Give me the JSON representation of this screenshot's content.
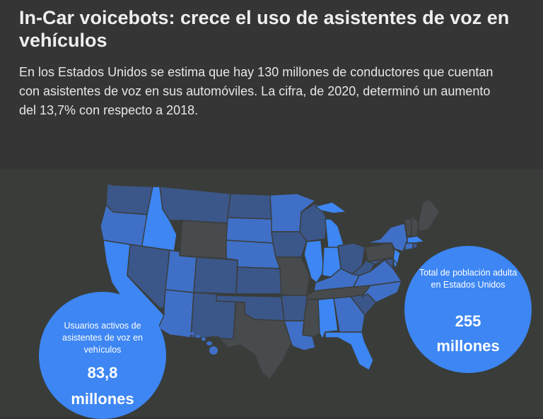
{
  "header": {
    "title": "In-Car voicebots: crece el uso de asistentes de voz en vehículos",
    "description": "En los Estados Unidos se estima que hay 130 millones de conductores que cuentan con asistentes de voz en sus automóviles. La cifra, de 2020, determinó un aumento del 13,7% con respecto a 2018."
  },
  "colors": {
    "header_bg": "#353535",
    "panel_bg": "#393c39",
    "bubble": "#3d86f3",
    "state_bright": "#3d86f3",
    "state_mid": "#3f6fc7",
    "state_dark": "#3b5689",
    "state_gray": "#484b4e"
  },
  "stats": {
    "active_users": {
      "label": "Usuarios activos  de asistentes de voz en vehículos",
      "value": "83,8",
      "unit": "millones"
    },
    "adult_population": {
      "label": "Total de población adulta en Estados Unidos",
      "value": "255",
      "unit": "millones"
    }
  }
}
